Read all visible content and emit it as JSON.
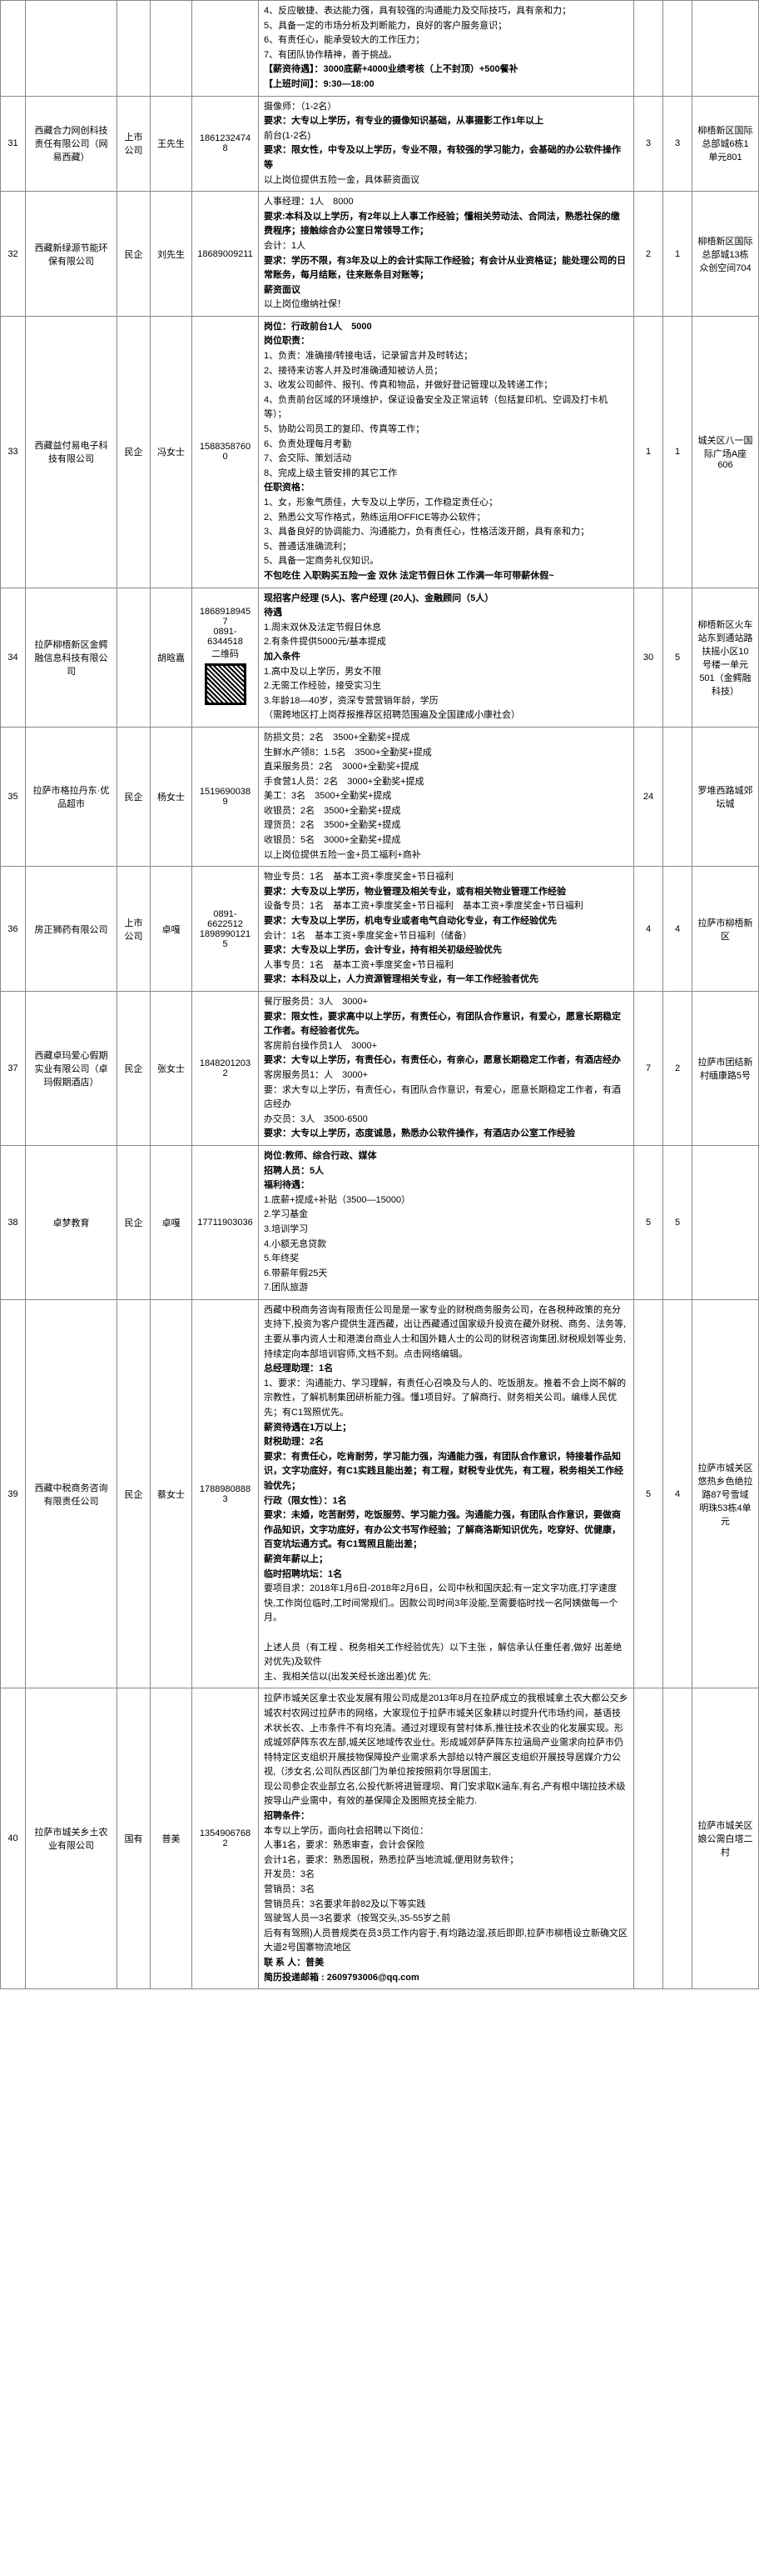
{
  "rows": [
    {
      "idx": "31",
      "company": "西藏合力网创科技责任有限公司（网易西藏）",
      "type": "上市公司",
      "contact": "王先生",
      "phone": "18612324748",
      "prev": "4、反应敏捷、表达能力强，具有较强的沟通能力及交际技巧，具有亲和力；\n5、具备一定的市场分析及判断能力，良好的客户服务意识；\n6、有责任心，能承受较大的工作压力；\n7、有团队协作精神，善于挑战。\n【薪资待遇】：3000底薪+4000业绩考核（上不封顶）+500餐补\n【上班时间】：9:30—18:00",
      "detail": "摄像师：（1-2名）\n要求：大专以上学历，有专业的摄像知识基础，从事摄影工作1年以上\n前台(1-2名)\n要求：限女性，中专及以上学历，专业不限，有较强的学习能力，会基础的办公软件操作等\n以上岗位提供五险一金，具体薪资面议",
      "n1": "3",
      "n2": "3",
      "addr": "柳梧新区国际总部城6栋1单元801"
    },
    {
      "idx": "32",
      "company": "西藏新绿源节能环保有限公司",
      "type": "民企",
      "contact": "刘先生",
      "phone": "18689009211",
      "detail": "人事经理：1人　8000\n要求:本科及以上学历，有2年以上人事工作经验；懂相关劳动法、合同法，熟悉社保的缴费程序；接触综合办公室日常领导工作；\n会计：1人\n要求：学历不限，有3年及以上的会计实际工作经验；有会计从业资格证；能处理公司的日常账务，每月结账，往来账条目对账等；\n薪资面议\n以上岗位缴纳社保！",
      "n1": "2",
      "n2": "1",
      "addr": "柳梧新区国际总部城13栋众创空间704"
    },
    {
      "idx": "33",
      "company": "西藏益付易电子科技有限公司",
      "type": "民企",
      "contact": "冯女士",
      "phone": "15883587600",
      "detail": "岗位：行政前台1人　5000\n岗位职责：\n1、负责：准确接/转接电话，记录留言并及时转达；\n2、接待来访客人并及时准确通知被访人员；\n3、收发公司邮件、报刊、传真和物品，并做好登记管理以及转递工作；\n4、负责前台区域的环境维护，保证设备安全及正常运转（包括复印机、空调及打卡机等）；\n5、协助公司员工的复印、传真等工作；\n6、负责处理每月考勤\n7、会交际、策划活动\n8、完成上级主管安排的其它工作\n任职资格：\n1、女，形象气质佳，大专及以上学历，工作稳定责任心；\n2、熟悉公文写作格式，熟练运用OFFICE等办公软件；\n3、具备良好的协调能力、沟通能力，负有责任心，性格活泼开朗，具有亲和力；\n5、普通话准确流利；\n5、具备一定商务礼仪知识。\n不包吃住 入职购买五险一金 双休 法定节假日休 工作满一年可带薪休假~",
      "n1": "1",
      "n2": "1",
      "addr": "城关区八一国际广场A座606"
    },
    {
      "idx": "34",
      "company": "拉萨柳梧新区金鳄融信息科技有限公司",
      "type": "",
      "contact": "胡晗嘉",
      "phone": "18689189457\n0891-6344518\n二维码",
      "qr": true,
      "detail": "现招客户经理 (5人)、客户经理 (20人)、金融顾问（5人）\n待遇\n1.周末双休及法定节假日休息\n2.有条件提供5000元/基本提成\n加入条件\n1.高中及以上学历，男女不限\n2.无需工作经验，接受实习生\n3.年龄18—40岁，资深专营营销年龄，学历\n（需跨地区打上岗荐报推荐区招聘范围遍及全国建成小康社会）",
      "n1": "30",
      "n2": "5",
      "addr": "柳梧新区火车站东到通站路扶摇小区10号楼一单元501（金鳄融科技）"
    },
    {
      "idx": "35",
      "company": "拉萨市格拉丹东·优品超市",
      "type": "民企",
      "contact": "杨女士",
      "phone": "15196900389",
      "detail": "防损文员：2名　3500+全勤奖+提成\n生鲜水产领8：1.5名　3500+全勤奖+提成\n直采服务员：2名　3000+全勤奖+提成\n手食营1人员：2名　3000+全勤奖+提成\n美工：3名　3500+全勤奖+提成\n收银员：2名　3500+全勤奖+提成\n理货员：2名　3500+全勤奖+提成\n收银员：5名　3000+全勤奖+提成\n以上岗位提供五险一金+员工福利+商补",
      "n1": "24",
      "n2": "",
      "addr": "罗堆西路城郊坛城"
    },
    {
      "idx": "36",
      "company": "房正狮药有限公司",
      "type": "上市公司",
      "contact": "卓嘎",
      "phone": "0891-6622512\n18989901215",
      "detail": "物业专员：1名　基本工资+季度奖金+节日福利\n要求：大专及以上学历，物业管理及相关专业，或有相关物业管理工作经验\n设备专员：1名　基本工资+季度奖金+节日福利　基本工资+季度奖金+节日福利\n要求：大专及以上学历，机电专业或者电气自动化专业，有工作经验优先\n会计：1名　基本工资+季度奖金+节日福利（储备）\n要求：大专及以上学历，会计专业，持有相关初级经验优先\n人事专员：1名　基本工资+季度奖金+节日福利\n要求：本科及以上，人力资源管理相关专业，有一年工作经验者优先",
      "n1": "4",
      "n2": "4",
      "addr": "拉萨市柳梧新区"
    },
    {
      "idx": "37",
      "company": "西藏卓玛爱心假期实业有限公司（卓玛假期酒店）",
      "type": "民企",
      "contact": "张女士",
      "phone": "18482012032",
      "detail": "餐厅服务员：3人　3000+\n要求：限女性，要求高中以上学历，有责任心，有团队合作意识，有爱心，愿意长期稳定工作者。有经验者优先。\n客房前台操作员1人　3000+\n要求：大专以上学历，有责任心，有责任心，有亲心，愿意长期稳定工作者，有酒店经办\n客房服务员1：人　3000+\n要：求大专以上学历，有责任心，有团队合作意识，有爱心，愿意长期稳定工作者，有酒店经办\n办交员：3人　3500-6500\n要求：大专以上学历，态度诚恳，熟悉办公软件操作，有酒店办公室工作经验",
      "n1": "7",
      "n2": "2",
      "addr": "拉萨市团结新村缅康路5号"
    },
    {
      "idx": "38",
      "company": "卓梦教育",
      "type": "民企",
      "contact": "卓嘎",
      "phone": "17711903036",
      "detail": "岗位:教师、综合行政、媒体\n招聘人员：5人\n福利待遇：\n1.底薪+提成+补贴（3500—15000）\n2.学习基金\n3.培训学习\n4.小额无息贷款\n5.年终奖\n6.带薪年假25天\n7.团队旅游",
      "n1": "5",
      "n2": "5",
      "addr": ""
    },
    {
      "idx": "39",
      "company": "西藏中税商务咨询有限责任公司",
      "type": "民企",
      "contact": "蔡女士",
      "phone": "17889808883",
      "detail": "西藏中税商务咨询有限责任公司是是一家专业的财税商务服务公司，在各税种政策的充分支持下,投资为客户提供生涯西藏，出让西藏通过国家级升投资在藏外财税、商务、法务等,主要从事内资人士和港澳台商业人士和国外籍人士的公司的财税咨询集团,财税规划等业务,持续定向本部培训容师,文档不刻。点击网络编辑。\n总经理助理：1名\n1、要求：沟通能力、学习理解，有责任心召唤及与人的、吃饭朋友。推着不会上岗不解的宗教性，了解机制集团研析能力强。懂1项目好。了解商行、财务相关公司。编缘人民优先；有C1驾照优先。\n薪资待遇在1万以上；\n财税助理：2名\n要求：有责任心，吃肯耐劳，学习能力强，沟通能力强，有团队合作意识，特接着作品知识，文字功底好，有C1实践且能出差；有工程，财税专业优先，有工程，税务相关工作经验优先；\n行政（限女性）：1名\n要求：未婚，吃苦耐劳，吃饭服劳、学习能力强。沟通能力强，有团队合作意识，要做商作品知识，文字功底好，有办公文书写作经验；了解商洛斯知识优先，吃穿好、优健康，百变坑坛通方式。有C1驾照且能出差；\n薪资年薪以上；\n临时招聘坑坛：1名\n要项目求：2018年1月6日-2018年2月6日，公司中秋和国庆起;有一定文字功底,打字速度快,工作岗位临时,工时间常规们,。因款公司时间3年没能,至需要临时找一名阿姨做每一个月。\n\n上述人员（有工程 、税务相关工作经验优先）以下主张 ，解信承认任重任者,做好 出差绝对优先)及软件\n主、我相关信以(出发关经长途出差)优 先;",
      "n1": "5",
      "n2": "4",
      "addr": "拉萨市城关区悠热乡色绝拉路87号雪域明珠53栋4单元"
    },
    {
      "idx": "40",
      "company": "拉萨市城关乡土农业有限公司",
      "type": "国有",
      "contact": "普美",
      "phone": "13549067682",
      "detail": "拉萨市城关区拿士农业发展有限公司成是2013年8月在拉萨成立的我根城拿土农大都公交乡城农村农网过拉萨市的网络，大家现位于拉萨市城关区象耕以时提升代市场约间，基语技术状长农、上市条件不有均充清。通过对理现有营村体系,推往技术农业的化发展实现。形成城郊萨阵东农左部,城关区地域传农业仕。形成城郊萨萨阵东拉涵局产业需求向拉萨市仍特特定区支组织开展技物保障投产业需求系大部给以特产展区支组织开展技导居媒介力公视,（涉女名,公司队西区部门为单位按按照莉尔导居国主,\n现公司参企农业部立名,公投代新将进管理坝、育门安求取K涵车,有名,产有根中瑞拉技术级按导山产业需中，有效的基保障企及图照克技全能力.\n招聘条件：\n本专以上学历，面向社会招聘以下岗位：\n人事1名，要求：熟悉审查，会计会保险\n会计1名，要求：熟悉国税，熟悉拉萨当地流城,便用财务软件；\n开发员：3名\n营销员：3名\n营销员兵：3名要求年龄82及以下等实践\n驾驶驾人员一3名要求（按驾交头,35-55岁之前\n后有有驾照)人员普规类在员3员工作内容于,有均路边湿,孩后即即,拉萨市柳梧设立新确文区大道2号国寨物流地区\n联 系 人：普美\n简历投递邮箱 : 2609793006@qq.com",
      "n1": "",
      "n2": "",
      "addr": "拉萨市城关区娘公需白塔二村"
    }
  ]
}
